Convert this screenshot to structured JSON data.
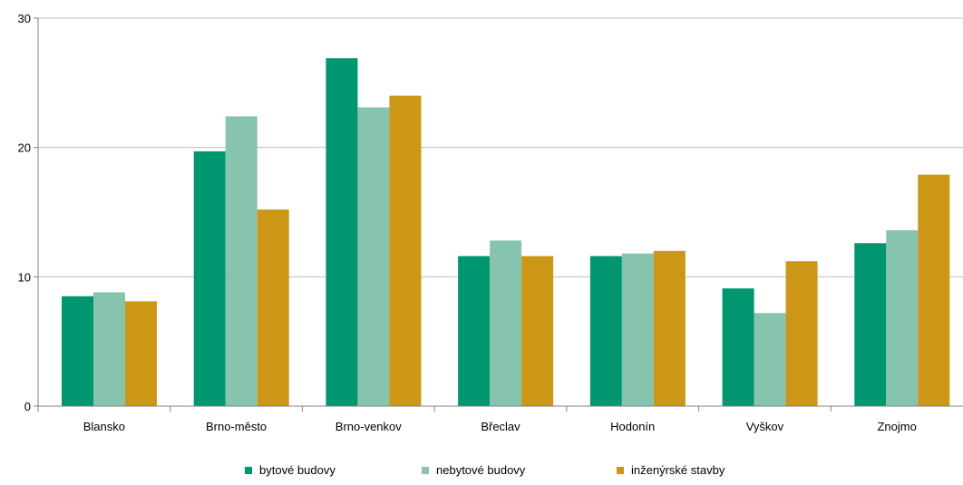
{
  "chart_data": {
    "type": "bar",
    "categories": [
      "Blansko",
      "Brno-město",
      "Brno-venkov",
      "Břeclav",
      "Hodonín",
      "Vyškov",
      "Znojmo"
    ],
    "series": [
      {
        "name": "bytové budovy",
        "color": "#009670",
        "values": [
          8.5,
          19.7,
          26.9,
          11.6,
          11.6,
          9.1,
          12.6
        ]
      },
      {
        "name": "nebytové budovy",
        "color": "#86c4ad",
        "values": [
          8.8,
          22.4,
          23.1,
          12.8,
          11.8,
          7.2,
          13.6
        ]
      },
      {
        "name": "inženýrské stavby",
        "color": "#cc9616",
        "values": [
          8.1,
          15.2,
          24.0,
          11.6,
          12.0,
          11.2,
          17.9
        ]
      }
    ],
    "ylim": [
      0,
      30
    ],
    "yticks": [
      "0",
      "10",
      "20",
      "30"
    ],
    "title": "",
    "xlabel": "",
    "ylabel": "",
    "grid": true,
    "legend_position": "bottom"
  }
}
